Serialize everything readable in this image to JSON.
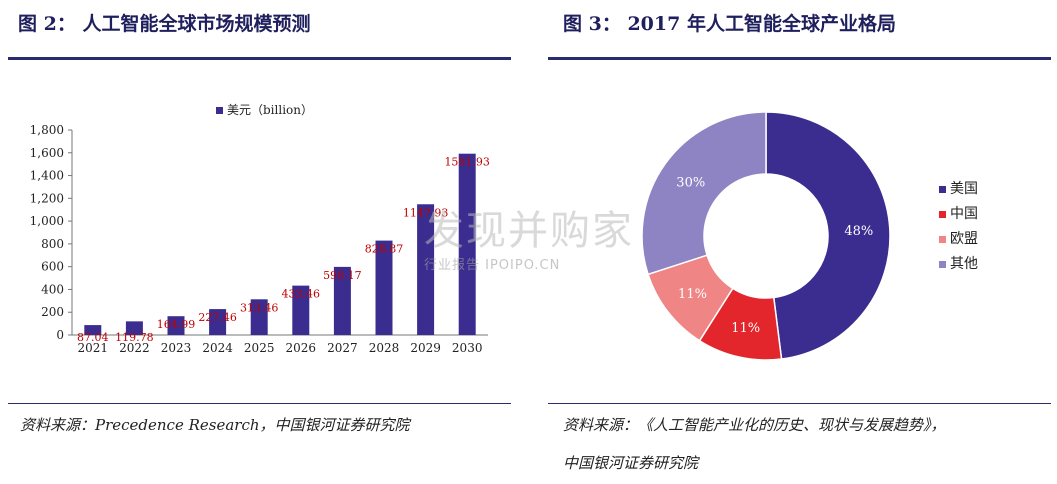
{
  "figure2": {
    "title": "图 2： 人工智能全球市场规模预测",
    "source": "资料来源：Precedence Research，中国银河证券研究院"
  },
  "figure3": {
    "title": "图 3： 2017 年人工智能全球产业格局",
    "source_line1": "资料来源：《人工智能产业化的历史、现状与发展趋势》，",
    "source_line2": "中国银河证券研究院"
  },
  "watermark": {
    "main": "发现并购家",
    "sub": "行业报告 IPOIPO.CN"
  },
  "chart_data": [
    {
      "type": "bar",
      "categories": [
        "2021",
        "2022",
        "2023",
        "2024",
        "2025",
        "2026",
        "2027",
        "2028",
        "2029",
        "2030"
      ],
      "series": [
        {
          "name": "美元（billion）",
          "values": [
            87.04,
            119.78,
            164.99,
            227.46,
            313.46,
            433.46,
            598.17,
            828.87,
            1147.93,
            1591.93
          ],
          "data_labels": [
            "87.04",
            "119.78",
            "164.99",
            "227.46",
            "313.46",
            "433.46",
            "598.17",
            "828.87",
            "1147.93",
            "1591.93"
          ]
        }
      ],
      "ylim": [
        0,
        1800
      ],
      "yticks": [
        "0",
        "200",
        "400",
        "600",
        "800",
        "1,000",
        "1,200",
        "1,400",
        "1,600",
        "1,800"
      ],
      "bar_color": "#3b2d8f",
      "label_color": "#c00000",
      "legend_position": "top"
    },
    {
      "type": "pie",
      "donut": true,
      "categories": [
        "美国",
        "中国",
        "欧盟",
        "其他"
      ],
      "values": [
        48,
        11,
        11,
        30
      ],
      "value_labels": [
        "48%",
        "11%",
        "11%",
        "30%"
      ],
      "colors": [
        "#3b2d8f",
        "#e3262b",
        "#f08585",
        "#8f84c3"
      ],
      "legend_position": "right"
    }
  ]
}
